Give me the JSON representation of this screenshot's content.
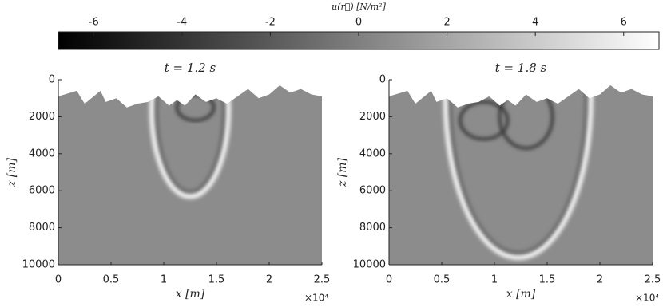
{
  "chart_data": [
    {
      "type": "colorbar",
      "label": "u(r⃗) [N/m²]",
      "clim": [
        -6.8,
        6.8
      ],
      "ticks": [
        -6,
        -4,
        -2,
        0,
        2,
        4,
        6
      ],
      "colormap": [
        "#000000",
        "#ffffff"
      ]
    },
    {
      "type": "heatmap",
      "title": "t = 1.2 s",
      "xlabel": "x [m]",
      "ylabel": "z [m]",
      "xlim": [
        0,
        25000
      ],
      "ylim": [
        0,
        10000
      ],
      "y_reversed": true,
      "xticks": [
        0,
        {
          "value": 5000,
          "label": "0.5"
        },
        {
          "value": 10000,
          "label": "1"
        },
        {
          "value": 15000,
          "label": "1.5"
        },
        {
          "value": 20000,
          "label": "2"
        },
        {
          "value": 25000,
          "label": "2.5"
        }
      ],
      "yticks": [
        0,
        2000,
        4000,
        6000,
        8000,
        10000
      ],
      "x_multiplier": "×10⁴"
    },
    {
      "type": "heatmap",
      "title": "t = 1.8 s",
      "xlabel": "x [m]",
      "ylabel": "z [m]",
      "xlim": [
        0,
        25000
      ],
      "ylim": [
        0,
        10000
      ],
      "y_reversed": true,
      "xticks": [
        0,
        {
          "value": 5000,
          "label": "0.5"
        },
        {
          "value": 10000,
          "label": "1"
        },
        {
          "value": 15000,
          "label": "1.5"
        },
        {
          "value": 20000,
          "label": "2"
        },
        {
          "value": 25000,
          "label": "2.5"
        }
      ],
      "yticks": [
        0,
        2000,
        4000,
        6000,
        8000,
        10000
      ],
      "x_multiplier": "×10⁴"
    }
  ]
}
